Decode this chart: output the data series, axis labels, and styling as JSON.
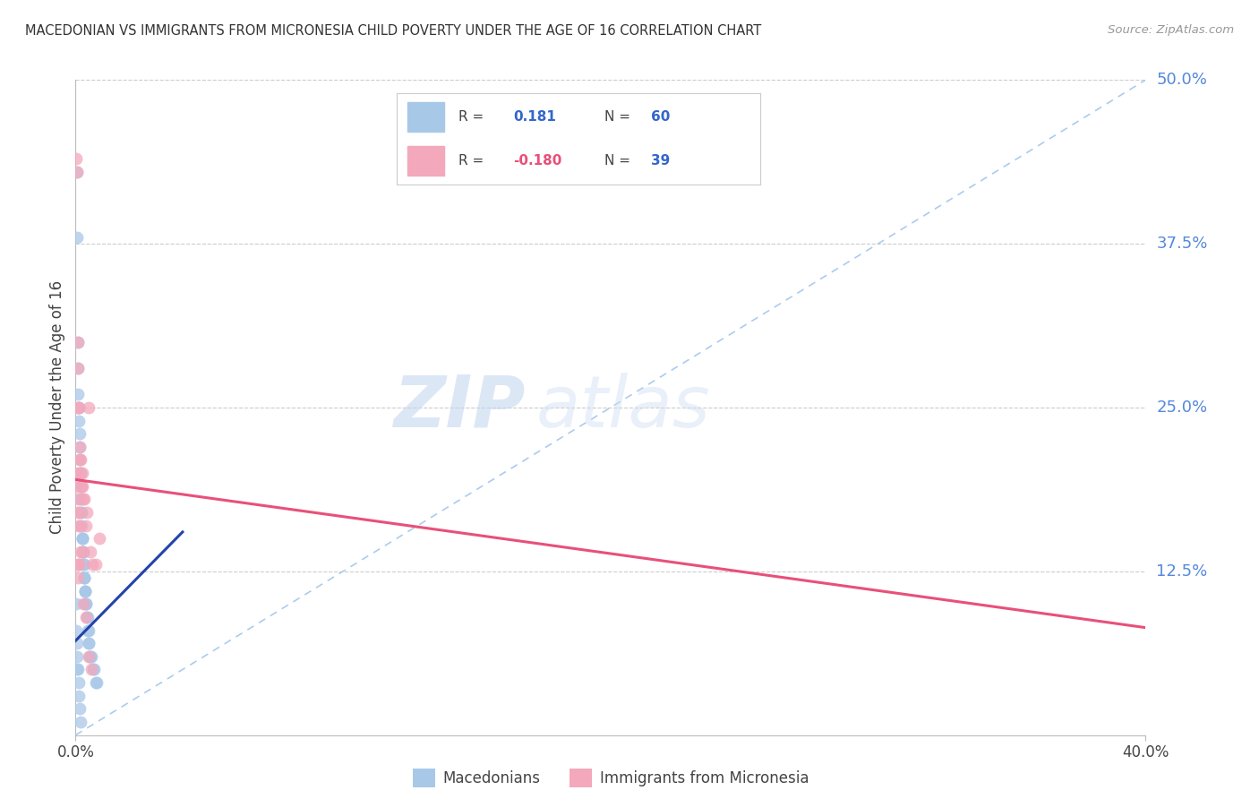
{
  "title": "MACEDONIAN VS IMMIGRANTS FROM MICRONESIA CHILD POVERTY UNDER THE AGE OF 16 CORRELATION CHART",
  "source": "Source: ZipAtlas.com",
  "ylabel": "Child Poverty Under the Age of 16",
  "xmin": 0.0,
  "xmax": 0.4,
  "ymin": 0.0,
  "ymax": 0.5,
  "yticks": [
    0.0,
    0.125,
    0.25,
    0.375,
    0.5
  ],
  "ytick_labels": [
    "",
    "12.5%",
    "25.0%",
    "37.5%",
    "50.0%"
  ],
  "macedonians_R": 0.181,
  "macedonians_N": 60,
  "micronesia_R": -0.18,
  "micronesia_N": 39,
  "blue_color": "#a8c8e8",
  "pink_color": "#f4a8bc",
  "blue_line_color": "#2244aa",
  "pink_line_color": "#e8507a",
  "ref_line_color": "#aaccee",
  "legend_label1": "Macedonians",
  "legend_label2": "Immigrants from Micronesia",
  "watermark_zip": "ZIP",
  "watermark_atlas": "atlas",
  "mac_line_x0": 0.0,
  "mac_line_y0": 0.072,
  "mac_line_x1": 0.04,
  "mac_line_y1": 0.155,
  "mic_line_x0": 0.0,
  "mic_line_y0": 0.195,
  "mic_line_x1": 0.4,
  "mic_line_y1": 0.082,
  "macedonians_x": [
    0.0005,
    0.0005,
    0.0008,
    0.001,
    0.001,
    0.0012,
    0.0012,
    0.0013,
    0.0015,
    0.0015,
    0.0015,
    0.0018,
    0.0018,
    0.0018,
    0.002,
    0.002,
    0.002,
    0.0022,
    0.0022,
    0.0023,
    0.0025,
    0.0025,
    0.0027,
    0.0027,
    0.0028,
    0.003,
    0.003,
    0.0032,
    0.0032,
    0.0033,
    0.0033,
    0.0035,
    0.0035,
    0.0037,
    0.0037,
    0.004,
    0.004,
    0.0042,
    0.0044,
    0.0046,
    0.0048,
    0.0048,
    0.005,
    0.0052,
    0.0055,
    0.006,
    0.0065,
    0.007,
    0.0075,
    0.008,
    0.0003,
    0.0003,
    0.0005,
    0.0007,
    0.0007,
    0.001,
    0.0012,
    0.0012,
    0.0015,
    0.002
  ],
  "macedonians_y": [
    0.43,
    0.38,
    0.3,
    0.28,
    0.26,
    0.25,
    0.25,
    0.24,
    0.23,
    0.22,
    0.21,
    0.2,
    0.2,
    0.19,
    0.19,
    0.18,
    0.18,
    0.17,
    0.17,
    0.16,
    0.15,
    0.15,
    0.15,
    0.14,
    0.14,
    0.14,
    0.13,
    0.13,
    0.12,
    0.12,
    0.12,
    0.11,
    0.11,
    0.11,
    0.1,
    0.1,
    0.1,
    0.09,
    0.09,
    0.08,
    0.08,
    0.07,
    0.07,
    0.06,
    0.06,
    0.06,
    0.05,
    0.05,
    0.04,
    0.04,
    0.1,
    0.08,
    0.07,
    0.06,
    0.05,
    0.05,
    0.04,
    0.03,
    0.02,
    0.01
  ],
  "micronesia_x": [
    0.0003,
    0.0005,
    0.0008,
    0.001,
    0.001,
    0.0013,
    0.0015,
    0.0017,
    0.0017,
    0.002,
    0.0022,
    0.0025,
    0.0027,
    0.003,
    0.0033,
    0.0038,
    0.0042,
    0.005,
    0.0055,
    0.0063,
    0.0075,
    0.0088,
    0.001,
    0.0013,
    0.0013,
    0.0008,
    0.0005,
    0.0007,
    0.001,
    0.0013,
    0.001,
    0.0013,
    0.0015,
    0.002,
    0.0025,
    0.003,
    0.0038,
    0.005,
    0.006
  ],
  "micronesia_y": [
    0.44,
    0.43,
    0.3,
    0.28,
    0.25,
    0.25,
    0.22,
    0.21,
    0.2,
    0.21,
    0.19,
    0.2,
    0.19,
    0.18,
    0.18,
    0.16,
    0.17,
    0.25,
    0.14,
    0.13,
    0.13,
    0.15,
    0.13,
    0.13,
    0.13,
    0.12,
    0.2,
    0.19,
    0.18,
    0.17,
    0.17,
    0.16,
    0.16,
    0.14,
    0.14,
    0.1,
    0.09,
    0.06,
    0.05
  ]
}
